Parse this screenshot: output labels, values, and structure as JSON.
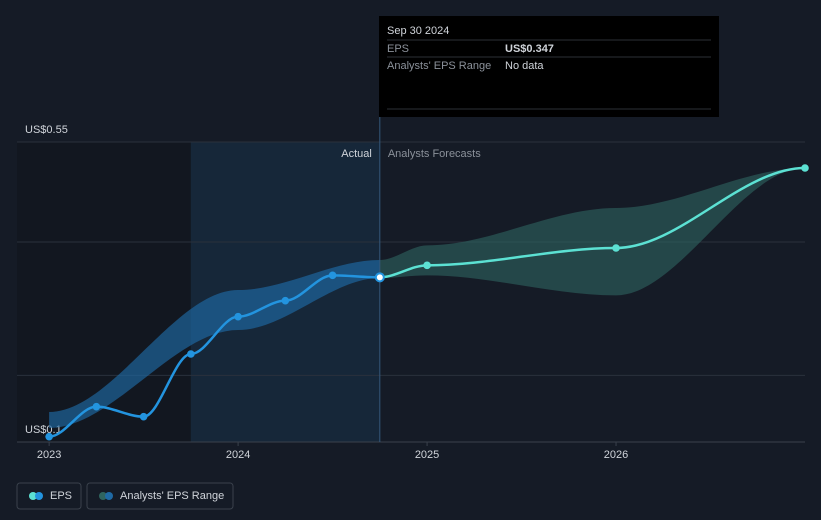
{
  "chart_data": {
    "type": "line",
    "x": [
      2023.0,
      2023.25,
      2023.5,
      2023.75,
      2024.0,
      2024.25,
      2024.5,
      2024.75,
      2025.0,
      2026.0,
      2027.0
    ],
    "series": [
      {
        "name": "EPS",
        "color": "#2394df",
        "forecast_color": "#5ce1d3",
        "values": [
          0.108,
          0.153,
          0.138,
          0.232,
          0.288,
          0.312,
          0.35,
          0.347,
          0.365,
          0.391,
          0.511
        ]
      }
    ],
    "range": {
      "name": "Analysts' EPS Range",
      "color": "#1f6aa5",
      "forecast_color": "#2f6560",
      "x": [
        2023.0,
        2024.0,
        2024.75,
        2025.0,
        2026.0,
        2027.0
      ],
      "low": [
        0.121,
        0.268,
        0.346,
        0.35,
        0.32,
        0.511
      ],
      "high": [
        0.145,
        0.328,
        0.373,
        0.395,
        0.451,
        0.511
      ]
    },
    "divider_x": 2024.75,
    "actual_label": "Actual",
    "forecast_label": "Analysts Forecasts",
    "xlim": [
      2022.83,
      2027.0
    ],
    "xticks": [
      2023,
      2024,
      2025,
      2026
    ],
    "ylim": [
      0.1,
      0.55
    ],
    "yticks": [
      {
        "value": 0.1,
        "label": "US$0.1"
      },
      {
        "value": 0.2,
        "label": null
      },
      {
        "value": 0.4,
        "label": null
      },
      {
        "value": 0.55,
        "label": "US$0.55"
      }
    ],
    "grid": true,
    "tooltip": {
      "date": "Sep 30 2024",
      "rows": [
        {
          "label": "EPS",
          "value": "US$0.347"
        },
        {
          "label": "Analysts' EPS Range",
          "value": "No data"
        }
      ]
    }
  }
}
